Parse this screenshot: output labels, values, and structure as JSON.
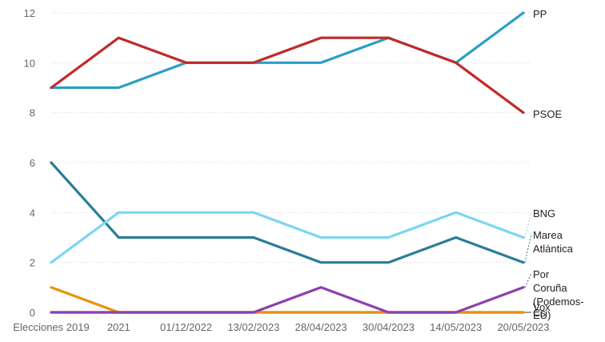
{
  "chart_data": {
    "type": "line",
    "categories": [
      "Elecciones 2019",
      "2021",
      "01/12/2022",
      "13/02/2023",
      "28/04/2023",
      "30/04/2023",
      "14/05/2023",
      "20/05/2023"
    ],
    "ylim": [
      0,
      12
    ],
    "yticks": [
      0,
      2,
      4,
      6,
      8,
      10,
      12
    ],
    "grid": true,
    "legend": "direct labels at right end",
    "series": [
      {
        "name": "PP",
        "color": "#2a9fc4",
        "values": [
          9,
          9,
          10,
          10,
          10,
          11,
          10,
          12
        ]
      },
      {
        "name": "PSOE",
        "color": "#c02a2a",
        "values": [
          9,
          11,
          10,
          10,
          11,
          11,
          10,
          8
        ]
      },
      {
        "name": "BNG",
        "color": "#7dd6ef",
        "values": [
          2,
          4,
          4,
          4,
          3,
          3,
          4,
          3
        ]
      },
      {
        "name": "Marea Atlántica",
        "color": "#2b7d96",
        "values": [
          6,
          3,
          3,
          3,
          2,
          2,
          3,
          2
        ]
      },
      {
        "name": "Por Coruña (Podemos-EU)",
        "color": "#8e3fb0",
        "values": [
          0,
          0,
          0,
          0,
          1,
          0,
          0,
          1
        ]
      },
      {
        "name": "Vox",
        "color": "#e8930e",
        "values": [
          1,
          0,
          0,
          0,
          0,
          0,
          0,
          0
        ]
      },
      {
        "name": "Cs",
        "color": "#8a7410",
        "values": [
          0,
          0,
          0,
          0,
          0,
          0,
          0,
          0
        ]
      }
    ]
  }
}
